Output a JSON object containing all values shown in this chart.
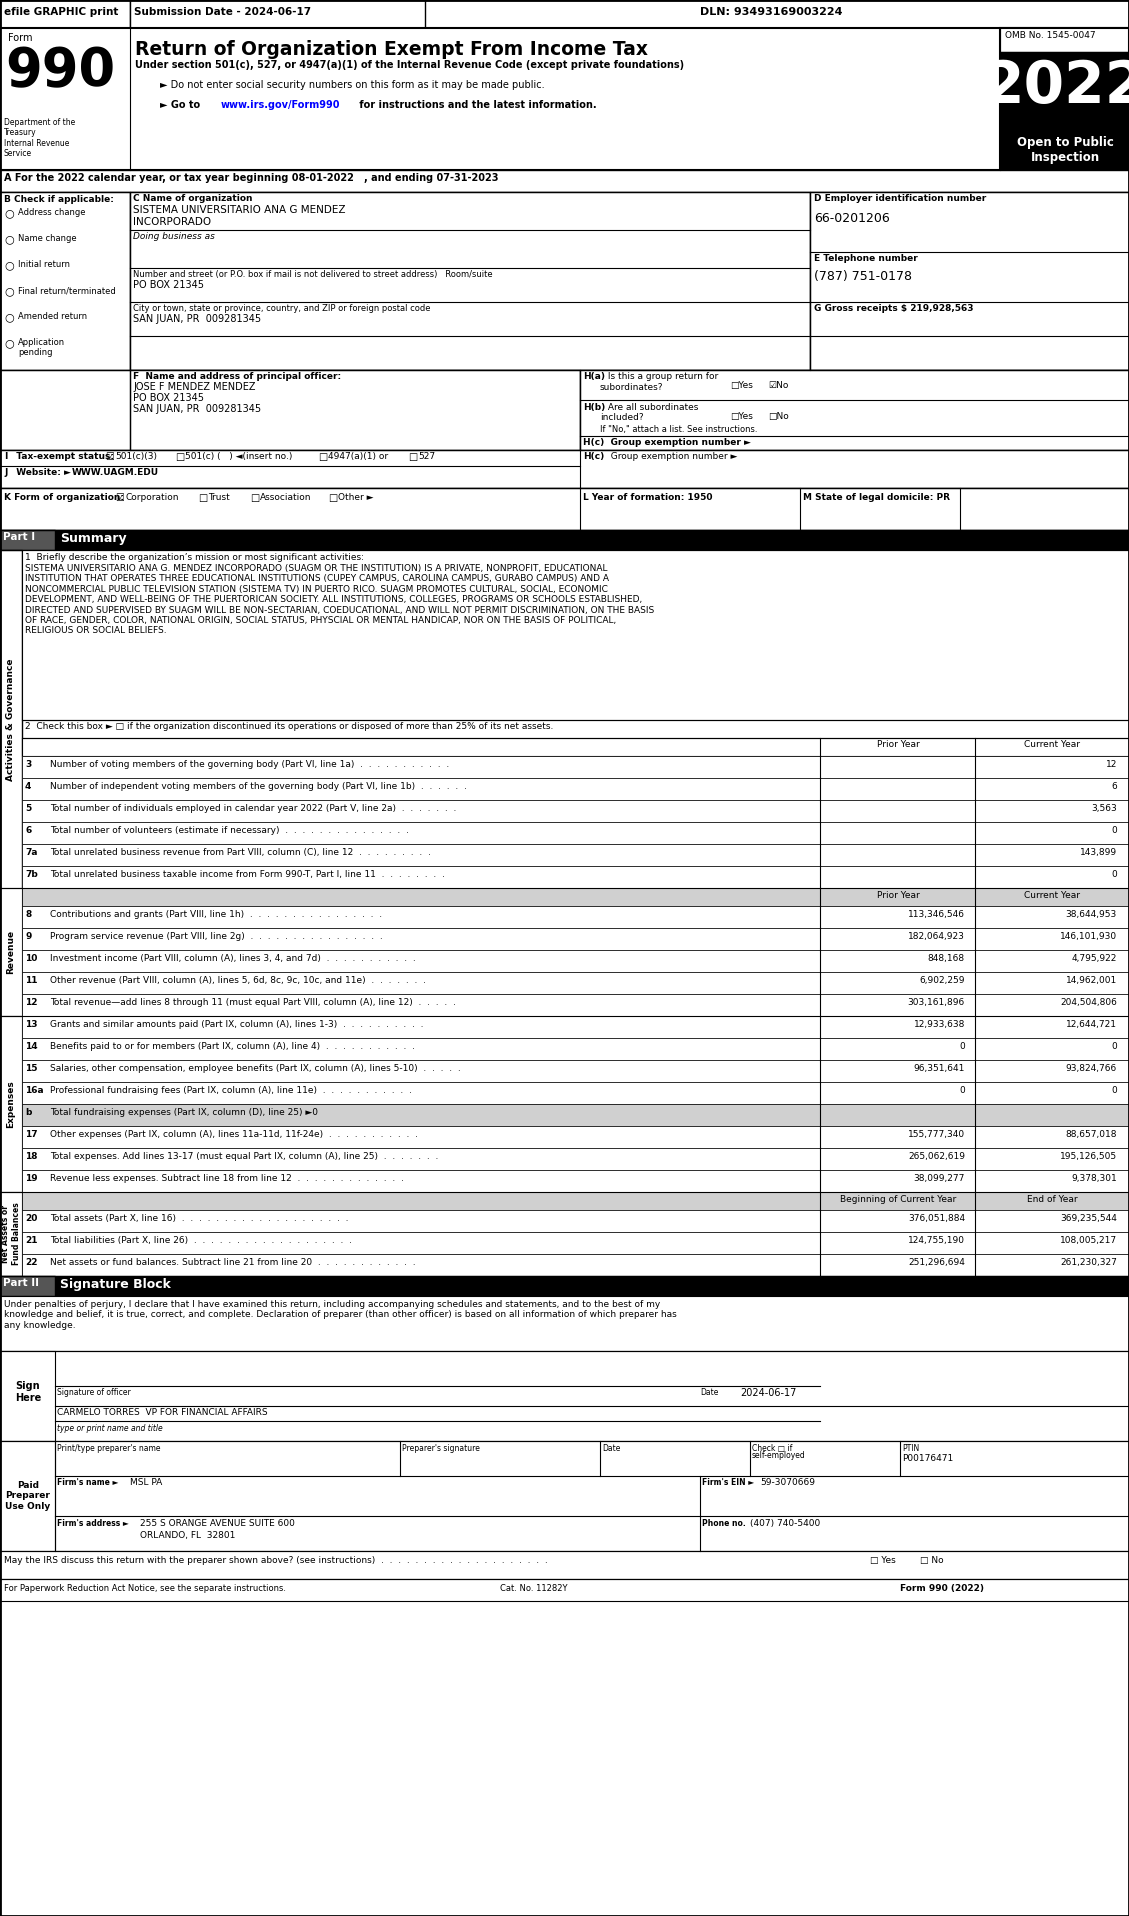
{
  "title": "Return of Organization Exempt From Income Tax",
  "subtitle": "Under section 501(c), 527, or 4947(a)(1) of the Internal Revenue Code (except private foundations)",
  "year": "2022",
  "form_number": "990",
  "omb": "OMB No. 1545-0047",
  "open_to_public": "Open to Public\nInspection",
  "efile_text": "efile GRAPHIC print",
  "submission_date": "Submission Date - 2024-06-17",
  "dln": "DLN: 93493169003224",
  "dept": "Department of the\nTreasury\nInternal Revenue\nService",
  "for_year": "A For the 2022 calendar year, or tax year beginning 08-01-2022   , and ending 07-31-2023",
  "org_name": "SISTEMA UNIVERSITARIO ANA G MENDEZ\nINCORPORADO",
  "doing_business_as": "Doing business as",
  "po_box": "PO BOX 21345",
  "city": "SAN JUAN, PR  009281345",
  "ein": "66-0201206",
  "phone": "(787) 751-0178",
  "gross_receipts": "G Gross receipts $ 219,928,563",
  "principal_officer": "JOSE F MENDEZ MENDEZ\nPO BOX 21345\nSAN JUAN, PR  009281345",
  "website": "WWW.UAGM.EDU",
  "mission_label": "1  Briefly describe the organization’s mission or most significant activities:",
  "mission_text": "SISTEMA UNIVERSITARIO ANA G. MENDEZ INCORPORADO (SUAGM OR THE INSTITUTION) IS A PRIVATE, NONPROFIT, EDUCATIONAL\nINSTITUTION THAT OPERATES THREE EDUCATIONAL INSTITUTIONS (CUPEY CAMPUS, CAROLINA CAMPUS, GURABO CAMPUS) AND A\nNONCOMMERCIAL PUBLIC TELEVISION STATION (SISTEMA TV) IN PUERTO RICO. SUAGM PROMOTES CULTURAL, SOCIAL, ECONOMIC\nDEVELOPMENT, AND WELL-BEING OF THE PUERTORICAN SOCIETY. ALL INSTITUTIONS, COLLEGES, PROGRAMS OR SCHOOLS ESTABLISHED,\nDIRECTED AND SUPERVISED BY SUAGM WILL BE NON-SECTARIAN, COEDUCATIONAL, AND WILL NOT PERMIT DISCRIMINATION, ON THE BASIS\nOF RACE, GENDER, COLOR, NATIONAL ORIGIN, SOCIAL STATUS, PHYSCIAL OR MENTAL HANDICAP, NOR ON THE BASIS OF POLITICAL,\nRELIGIOUS OR SOCIAL BELIEFS.",
  "check_box_label": "2  Check this box ► □ if the organization discontinued its operations or disposed of more than 25% of its net assets.",
  "rows": [
    {
      "num": "3",
      "label": "Number of voting members of the governing body (Part VI, line 1a)  .  .  .  .  .  .  .  .  .  .  .",
      "prior": "",
      "current": "12"
    },
    {
      "num": "4",
      "label": "Number of independent voting members of the governing body (Part VI, line 1b)  .  .  .  .  .  .",
      "prior": "",
      "current": "6"
    },
    {
      "num": "5",
      "label": "Total number of individuals employed in calendar year 2022 (Part V, line 2a)  .  .  .  .  .  .  .",
      "prior": "",
      "current": "3,563"
    },
    {
      "num": "6",
      "label": "Total number of volunteers (estimate if necessary)  .  .  .  .  .  .  .  .  .  .  .  .  .  .  .",
      "prior": "",
      "current": "0"
    },
    {
      "num": "7a",
      "label": "Total unrelated business revenue from Part VIII, column (C), line 12  .  .  .  .  .  .  .  .  .",
      "prior": "",
      "current": "143,899"
    },
    {
      "num": "7b",
      "label": "Total unrelated business taxable income from Form 990-T, Part I, line 11  .  .  .  .  .  .  .  .",
      "prior": "",
      "current": "0"
    }
  ],
  "revenue_rows": [
    {
      "num": "8",
      "label": "Contributions and grants (Part VIII, line 1h)  .  .  .  .  .  .  .  .  .  .  .  .  .  .  .  .",
      "prior": "113,346,546",
      "current": "38,644,953"
    },
    {
      "num": "9",
      "label": "Program service revenue (Part VIII, line 2g)  .  .  .  .  .  .  .  .  .  .  .  .  .  .  .  .",
      "prior": "182,064,923",
      "current": "146,101,930"
    },
    {
      "num": "10",
      "label": "Investment income (Part VIII, column (A), lines 3, 4, and 7d)  .  .  .  .  .  .  .  .  .  .  .",
      "prior": "848,168",
      "current": "4,795,922"
    },
    {
      "num": "11",
      "label": "Other revenue (Part VIII, column (A), lines 5, 6d, 8c, 9c, 10c, and 11e)  .  .  .  .  .  .  .",
      "prior": "6,902,259",
      "current": "14,962,001"
    },
    {
      "num": "12",
      "label": "Total revenue—add lines 8 through 11 (must equal Part VIII, column (A), line 12)  .  .  .  .  .",
      "prior": "303,161,896",
      "current": "204,504,806"
    }
  ],
  "expenses_rows": [
    {
      "num": "13",
      "label": "Grants and similar amounts paid (Part IX, column (A), lines 1-3)  .  .  .  .  .  .  .  .  .  .",
      "prior": "12,933,638",
      "current": "12,644,721",
      "gray": false
    },
    {
      "num": "14",
      "label": "Benefits paid to or for members (Part IX, column (A), line 4)  .  .  .  .  .  .  .  .  .  .  .",
      "prior": "0",
      "current": "0",
      "gray": false
    },
    {
      "num": "15",
      "label": "Salaries, other compensation, employee benefits (Part IX, column (A), lines 5-10)  .  .  .  .  .",
      "prior": "96,351,641",
      "current": "93,824,766",
      "gray": false
    },
    {
      "num": "16a",
      "label": "Professional fundraising fees (Part IX, column (A), line 11e)  .  .  .  .  .  .  .  .  .  .  .",
      "prior": "0",
      "current": "0",
      "gray": false
    },
    {
      "num": "b",
      "label": "Total fundraising expenses (Part IX, column (D), line 25) ►0",
      "prior": "",
      "current": "",
      "gray": true
    },
    {
      "num": "17",
      "label": "Other expenses (Part IX, column (A), lines 11a-11d, 11f-24e)  .  .  .  .  .  .  .  .  .  .  .",
      "prior": "155,777,340",
      "current": "88,657,018",
      "gray": false
    },
    {
      "num": "18",
      "label": "Total expenses. Add lines 13-17 (must equal Part IX, column (A), line 25)  .  .  .  .  .  .  .",
      "prior": "265,062,619",
      "current": "195,126,505",
      "gray": false
    },
    {
      "num": "19",
      "label": "Revenue less expenses. Subtract line 18 from line 12  .  .  .  .  .  .  .  .  .  .  .  .  .",
      "prior": "38,099,277",
      "current": "9,378,301",
      "gray": false
    }
  ],
  "net_assets_rows": [
    {
      "num": "20",
      "label": "Total assets (Part X, line 16)  .  .  .  .  .  .  .  .  .  .  .  .  .  .  .  .  .  .  .  .",
      "prior": "376,051,884",
      "current": "369,235,544"
    },
    {
      "num": "21",
      "label": "Total liabilities (Part X, line 26)  .  .  .  .  .  .  .  .  .  .  .  .  .  .  .  .  .  .  .",
      "prior": "124,755,190",
      "current": "108,005,217"
    },
    {
      "num": "22",
      "label": "Net assets or fund balances. Subtract line 21 from line 20  .  .  .  .  .  .  .  .  .  .  .  .",
      "prior": "251,296,694",
      "current": "261,230,327"
    }
  ],
  "signature_text": "Under penalties of perjury, I declare that I have examined this return, including accompanying schedules and statements, and to the best of my\nknowledge and belief, it is true, correct, and complete. Declaration of preparer (than other officer) is based on all information of which preparer has\nany knowledge.",
  "signature_date": "2024-06-17",
  "officer_title": "CARMELO TORRES  VP FOR FINANCIAL AFFAIRS",
  "preparer_ptin": "P00176471",
  "firm_name": "MSL PA",
  "firm_ein": "59-3070669",
  "firm_address": "255 S ORANGE AVENUE SUITE 600",
  "firm_city": "ORLANDO, FL  32801",
  "firm_phone": "(407) 740-5400",
  "may_discuss": "May the IRS discuss this return with the preparer shown above? (see instructions)",
  "cat_no": "Cat. No. 11282Y",
  "form_footer": "Form 990 (2022)",
  "bg_color": "#ffffff"
}
